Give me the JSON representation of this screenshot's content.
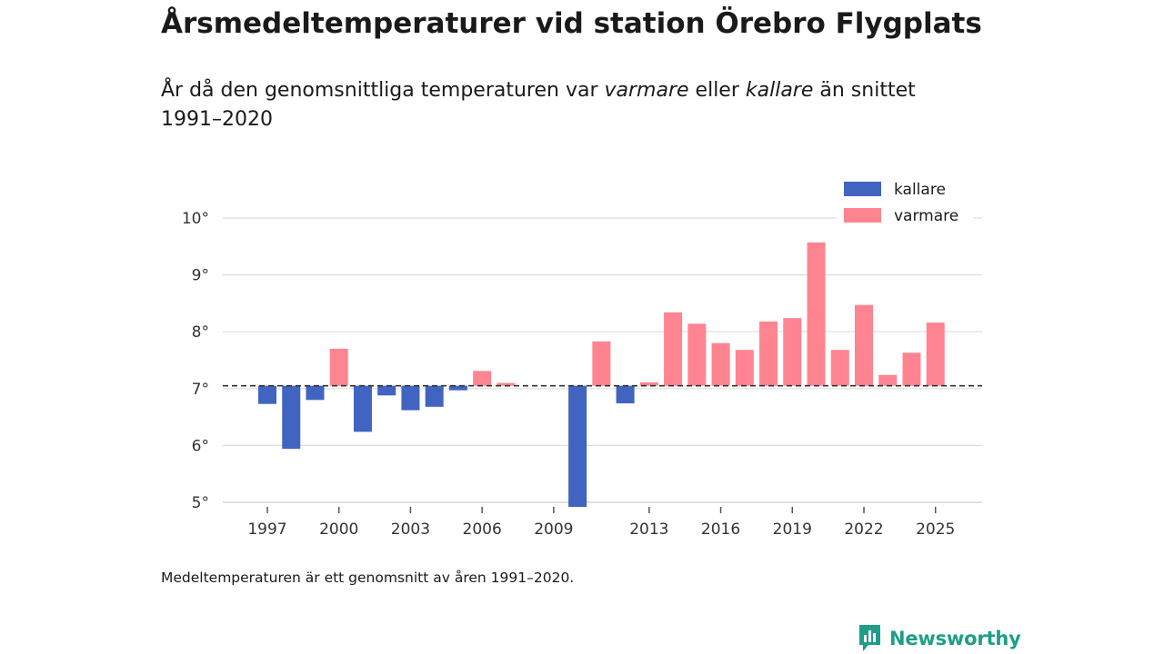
{
  "header": {
    "title": "Årsmedeltemperaturer vid station Örebro Flygplats",
    "subtitle_pre": "År då den genomsnittliga temperaturen var ",
    "subtitle_warmer": "varmare",
    "subtitle_mid": " eller ",
    "subtitle_colder": "kallare",
    "subtitle_post": " än snittet 1991–2020"
  },
  "footnote": "Medeltemperaturen är ett genomsnitt av åren 1991–2020.",
  "brand": {
    "name": "Newsworthy",
    "icon": "newsworthy-logo-icon",
    "color": "#1f9e87"
  },
  "colors": {
    "colder": "#4064bf",
    "warmer": "#ff8491",
    "grid": "#dddddd",
    "baseline": "#333333"
  },
  "chart_data": {
    "type": "bar",
    "title": "Årsmedeltemperaturer vid station Örebro Flygplats",
    "xlabel": "",
    "ylabel": "",
    "baseline": 7.05,
    "ylim": [
      5,
      10
    ],
    "y_ticks": [
      5,
      6,
      7,
      8,
      9,
      10
    ],
    "y_tick_labels": [
      "5°",
      "6°",
      "7°",
      "8°",
      "9°",
      "10°"
    ],
    "x_ticks": [
      1997,
      2000,
      2003,
      2006,
      2009,
      2013,
      2016,
      2019,
      2022,
      2025
    ],
    "legend": {
      "position": "top-right",
      "entries": [
        {
          "name": "kallare",
          "series": "colder"
        },
        {
          "name": "varmare",
          "series": "warmer"
        }
      ]
    },
    "categories": [
      1997,
      1998,
      1999,
      2000,
      2001,
      2002,
      2003,
      2004,
      2005,
      2006,
      2007,
      2010,
      2011,
      2012,
      2013,
      2014,
      2015,
      2016,
      2017,
      2018,
      2019,
      2020,
      2021,
      2022,
      2023,
      2024,
      2025
    ],
    "values": [
      6.73,
      5.94,
      6.8,
      7.7,
      6.24,
      6.88,
      6.62,
      6.68,
      6.97,
      7.31,
      7.1,
      4.92,
      7.83,
      6.74,
      7.11,
      8.34,
      8.14,
      7.8,
      7.68,
      8.18,
      8.24,
      9.57,
      7.68,
      8.47,
      7.24,
      7.63,
      8.16
    ]
  }
}
